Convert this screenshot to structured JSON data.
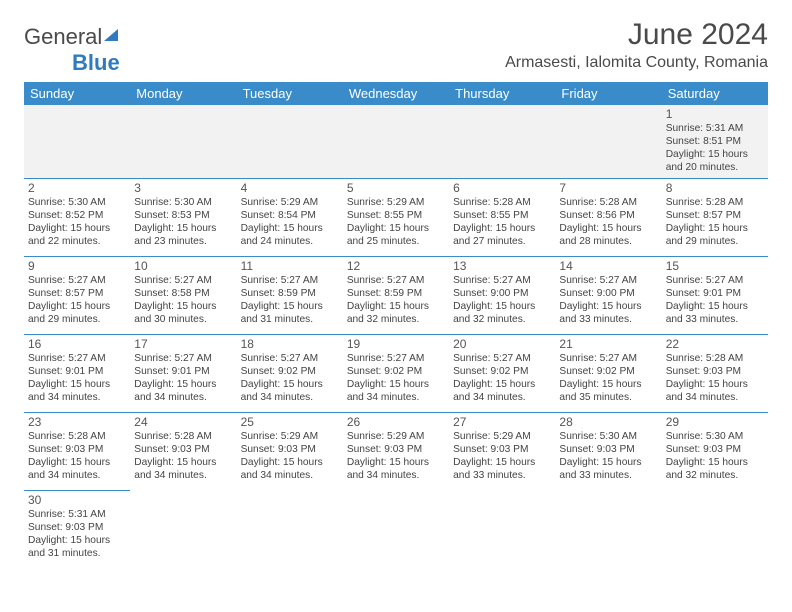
{
  "brand": {
    "part1": "General",
    "part2": "Blue"
  },
  "title": "June 2024",
  "location": "Armasesti, Ialomita County, Romania",
  "colors": {
    "header_bg": "#3a8bc9",
    "header_text": "#ffffff",
    "rule": "#3a8bc9",
    "text": "#444444"
  },
  "weekdays": [
    "Sunday",
    "Monday",
    "Tuesday",
    "Wednesday",
    "Thursday",
    "Friday",
    "Saturday"
  ],
  "weeks": [
    [
      null,
      null,
      null,
      null,
      null,
      null,
      {
        "d": "1",
        "sr": "Sunrise: 5:31 AM",
        "ss": "Sunset: 8:51 PM",
        "dl1": "Daylight: 15 hours",
        "dl2": "and 20 minutes."
      }
    ],
    [
      {
        "d": "2",
        "sr": "Sunrise: 5:30 AM",
        "ss": "Sunset: 8:52 PM",
        "dl1": "Daylight: 15 hours",
        "dl2": "and 22 minutes."
      },
      {
        "d": "3",
        "sr": "Sunrise: 5:30 AM",
        "ss": "Sunset: 8:53 PM",
        "dl1": "Daylight: 15 hours",
        "dl2": "and 23 minutes."
      },
      {
        "d": "4",
        "sr": "Sunrise: 5:29 AM",
        "ss": "Sunset: 8:54 PM",
        "dl1": "Daylight: 15 hours",
        "dl2": "and 24 minutes."
      },
      {
        "d": "5",
        "sr": "Sunrise: 5:29 AM",
        "ss": "Sunset: 8:55 PM",
        "dl1": "Daylight: 15 hours",
        "dl2": "and 25 minutes."
      },
      {
        "d": "6",
        "sr": "Sunrise: 5:28 AM",
        "ss": "Sunset: 8:55 PM",
        "dl1": "Daylight: 15 hours",
        "dl2": "and 27 minutes."
      },
      {
        "d": "7",
        "sr": "Sunrise: 5:28 AM",
        "ss": "Sunset: 8:56 PM",
        "dl1": "Daylight: 15 hours",
        "dl2": "and 28 minutes."
      },
      {
        "d": "8",
        "sr": "Sunrise: 5:28 AM",
        "ss": "Sunset: 8:57 PM",
        "dl1": "Daylight: 15 hours",
        "dl2": "and 29 minutes."
      }
    ],
    [
      {
        "d": "9",
        "sr": "Sunrise: 5:27 AM",
        "ss": "Sunset: 8:57 PM",
        "dl1": "Daylight: 15 hours",
        "dl2": "and 29 minutes."
      },
      {
        "d": "10",
        "sr": "Sunrise: 5:27 AM",
        "ss": "Sunset: 8:58 PM",
        "dl1": "Daylight: 15 hours",
        "dl2": "and 30 minutes."
      },
      {
        "d": "11",
        "sr": "Sunrise: 5:27 AM",
        "ss": "Sunset: 8:59 PM",
        "dl1": "Daylight: 15 hours",
        "dl2": "and 31 minutes."
      },
      {
        "d": "12",
        "sr": "Sunrise: 5:27 AM",
        "ss": "Sunset: 8:59 PM",
        "dl1": "Daylight: 15 hours",
        "dl2": "and 32 minutes."
      },
      {
        "d": "13",
        "sr": "Sunrise: 5:27 AM",
        "ss": "Sunset: 9:00 PM",
        "dl1": "Daylight: 15 hours",
        "dl2": "and 32 minutes."
      },
      {
        "d": "14",
        "sr": "Sunrise: 5:27 AM",
        "ss": "Sunset: 9:00 PM",
        "dl1": "Daylight: 15 hours",
        "dl2": "and 33 minutes."
      },
      {
        "d": "15",
        "sr": "Sunrise: 5:27 AM",
        "ss": "Sunset: 9:01 PM",
        "dl1": "Daylight: 15 hours",
        "dl2": "and 33 minutes."
      }
    ],
    [
      {
        "d": "16",
        "sr": "Sunrise: 5:27 AM",
        "ss": "Sunset: 9:01 PM",
        "dl1": "Daylight: 15 hours",
        "dl2": "and 34 minutes."
      },
      {
        "d": "17",
        "sr": "Sunrise: 5:27 AM",
        "ss": "Sunset: 9:01 PM",
        "dl1": "Daylight: 15 hours",
        "dl2": "and 34 minutes."
      },
      {
        "d": "18",
        "sr": "Sunrise: 5:27 AM",
        "ss": "Sunset: 9:02 PM",
        "dl1": "Daylight: 15 hours",
        "dl2": "and 34 minutes."
      },
      {
        "d": "19",
        "sr": "Sunrise: 5:27 AM",
        "ss": "Sunset: 9:02 PM",
        "dl1": "Daylight: 15 hours",
        "dl2": "and 34 minutes."
      },
      {
        "d": "20",
        "sr": "Sunrise: 5:27 AM",
        "ss": "Sunset: 9:02 PM",
        "dl1": "Daylight: 15 hours",
        "dl2": "and 34 minutes."
      },
      {
        "d": "21",
        "sr": "Sunrise: 5:27 AM",
        "ss": "Sunset: 9:02 PM",
        "dl1": "Daylight: 15 hours",
        "dl2": "and 35 minutes."
      },
      {
        "d": "22",
        "sr": "Sunrise: 5:28 AM",
        "ss": "Sunset: 9:03 PM",
        "dl1": "Daylight: 15 hours",
        "dl2": "and 34 minutes."
      }
    ],
    [
      {
        "d": "23",
        "sr": "Sunrise: 5:28 AM",
        "ss": "Sunset: 9:03 PM",
        "dl1": "Daylight: 15 hours",
        "dl2": "and 34 minutes."
      },
      {
        "d": "24",
        "sr": "Sunrise: 5:28 AM",
        "ss": "Sunset: 9:03 PM",
        "dl1": "Daylight: 15 hours",
        "dl2": "and 34 minutes."
      },
      {
        "d": "25",
        "sr": "Sunrise: 5:29 AM",
        "ss": "Sunset: 9:03 PM",
        "dl1": "Daylight: 15 hours",
        "dl2": "and 34 minutes."
      },
      {
        "d": "26",
        "sr": "Sunrise: 5:29 AM",
        "ss": "Sunset: 9:03 PM",
        "dl1": "Daylight: 15 hours",
        "dl2": "and 34 minutes."
      },
      {
        "d": "27",
        "sr": "Sunrise: 5:29 AM",
        "ss": "Sunset: 9:03 PM",
        "dl1": "Daylight: 15 hours",
        "dl2": "and 33 minutes."
      },
      {
        "d": "28",
        "sr": "Sunrise: 5:30 AM",
        "ss": "Sunset: 9:03 PM",
        "dl1": "Daylight: 15 hours",
        "dl2": "and 33 minutes."
      },
      {
        "d": "29",
        "sr": "Sunrise: 5:30 AM",
        "ss": "Sunset: 9:03 PM",
        "dl1": "Daylight: 15 hours",
        "dl2": "and 32 minutes."
      }
    ],
    [
      {
        "d": "30",
        "sr": "Sunrise: 5:31 AM",
        "ss": "Sunset: 9:03 PM",
        "dl1": "Daylight: 15 hours",
        "dl2": "and 31 minutes."
      },
      null,
      null,
      null,
      null,
      null,
      null
    ]
  ]
}
